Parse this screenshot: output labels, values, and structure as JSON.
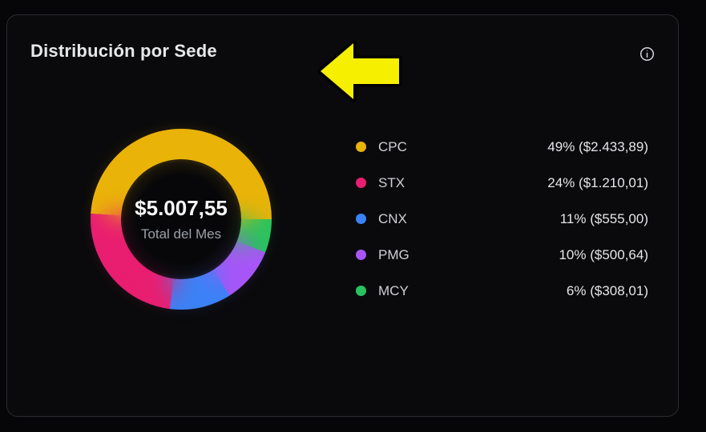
{
  "card": {
    "title": "Distribución por Sede",
    "info_icon": "info-circle-icon"
  },
  "annotation": {
    "type": "arrow",
    "direction": "left",
    "fill_color": "#f6ef00",
    "outline_color": "#000000"
  },
  "chart_data": {
    "type": "pie",
    "subtype": "donut",
    "title": "Distribución por Sede",
    "center_total": "$5.007,55",
    "center_subtitle": "Total del Mes",
    "legend_position": "right",
    "start_angle_deg": -86.4,
    "render_order": [
      0,
      4,
      3,
      2,
      1
    ],
    "categories": [
      "CPC",
      "STX",
      "CNX",
      "PMG",
      "MCY"
    ],
    "values_percent": [
      49,
      24,
      11,
      10,
      6
    ],
    "series": [
      {
        "label": "CPC",
        "percent": 49,
        "amount": "$2.433,89",
        "display": "49% ($2.433,89)",
        "color": "#eab308"
      },
      {
        "label": "STX",
        "percent": 24,
        "amount": "$1.210,01",
        "display": "24% ($1.210,01)",
        "color": "#e91e70"
      },
      {
        "label": "CNX",
        "percent": 11,
        "amount": "$555,00",
        "display": "11% ($555,00)",
        "color": "#3b82f6"
      },
      {
        "label": "PMG",
        "percent": 10,
        "amount": "$500,64",
        "display": "10% ($500,64)",
        "color": "#a855f7"
      },
      {
        "label": "MCY",
        "percent": 6,
        "amount": "$308,01",
        "display": "6% ($308,01)",
        "color": "#28c35e"
      }
    ]
  }
}
